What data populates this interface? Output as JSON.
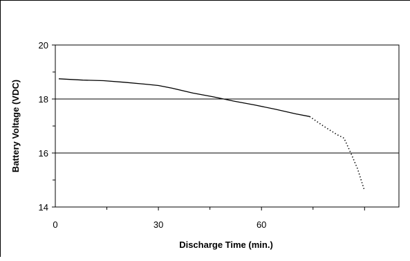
{
  "chart_data": {
    "type": "line",
    "title": "",
    "xlabel": "Discharge Time (min.)",
    "ylabel": "Battery Voltage (VDC)",
    "xlim": [
      0,
      100
    ],
    "ylim": [
      14,
      20
    ],
    "x_ticks": [
      0,
      30,
      60
    ],
    "y_ticks": [
      14,
      16,
      18,
      20
    ],
    "x_tick_labels": [
      "0",
      "30",
      "60"
    ],
    "y_tick_labels": [
      "14",
      "16",
      "18",
      "20"
    ],
    "gridlines_y": [
      16,
      18
    ],
    "grid": true,
    "legend": "none",
    "series": [
      {
        "style": "solid",
        "color": "#000000",
        "x": [
          1,
          8,
          14,
          20,
          26,
          30,
          34,
          40,
          46,
          52,
          58,
          64,
          70,
          74
        ],
        "y": [
          18.75,
          18.7,
          18.68,
          18.62,
          18.55,
          18.5,
          18.4,
          18.22,
          18.08,
          17.92,
          17.78,
          17.62,
          17.45,
          17.35
        ]
      },
      {
        "style": "dotted",
        "color": "#000000",
        "x": [
          74,
          78,
          82,
          84,
          86,
          88,
          89,
          90
        ],
        "y": [
          17.35,
          17.0,
          16.68,
          16.55,
          16.0,
          15.4,
          15.0,
          14.6
        ]
      }
    ]
  }
}
